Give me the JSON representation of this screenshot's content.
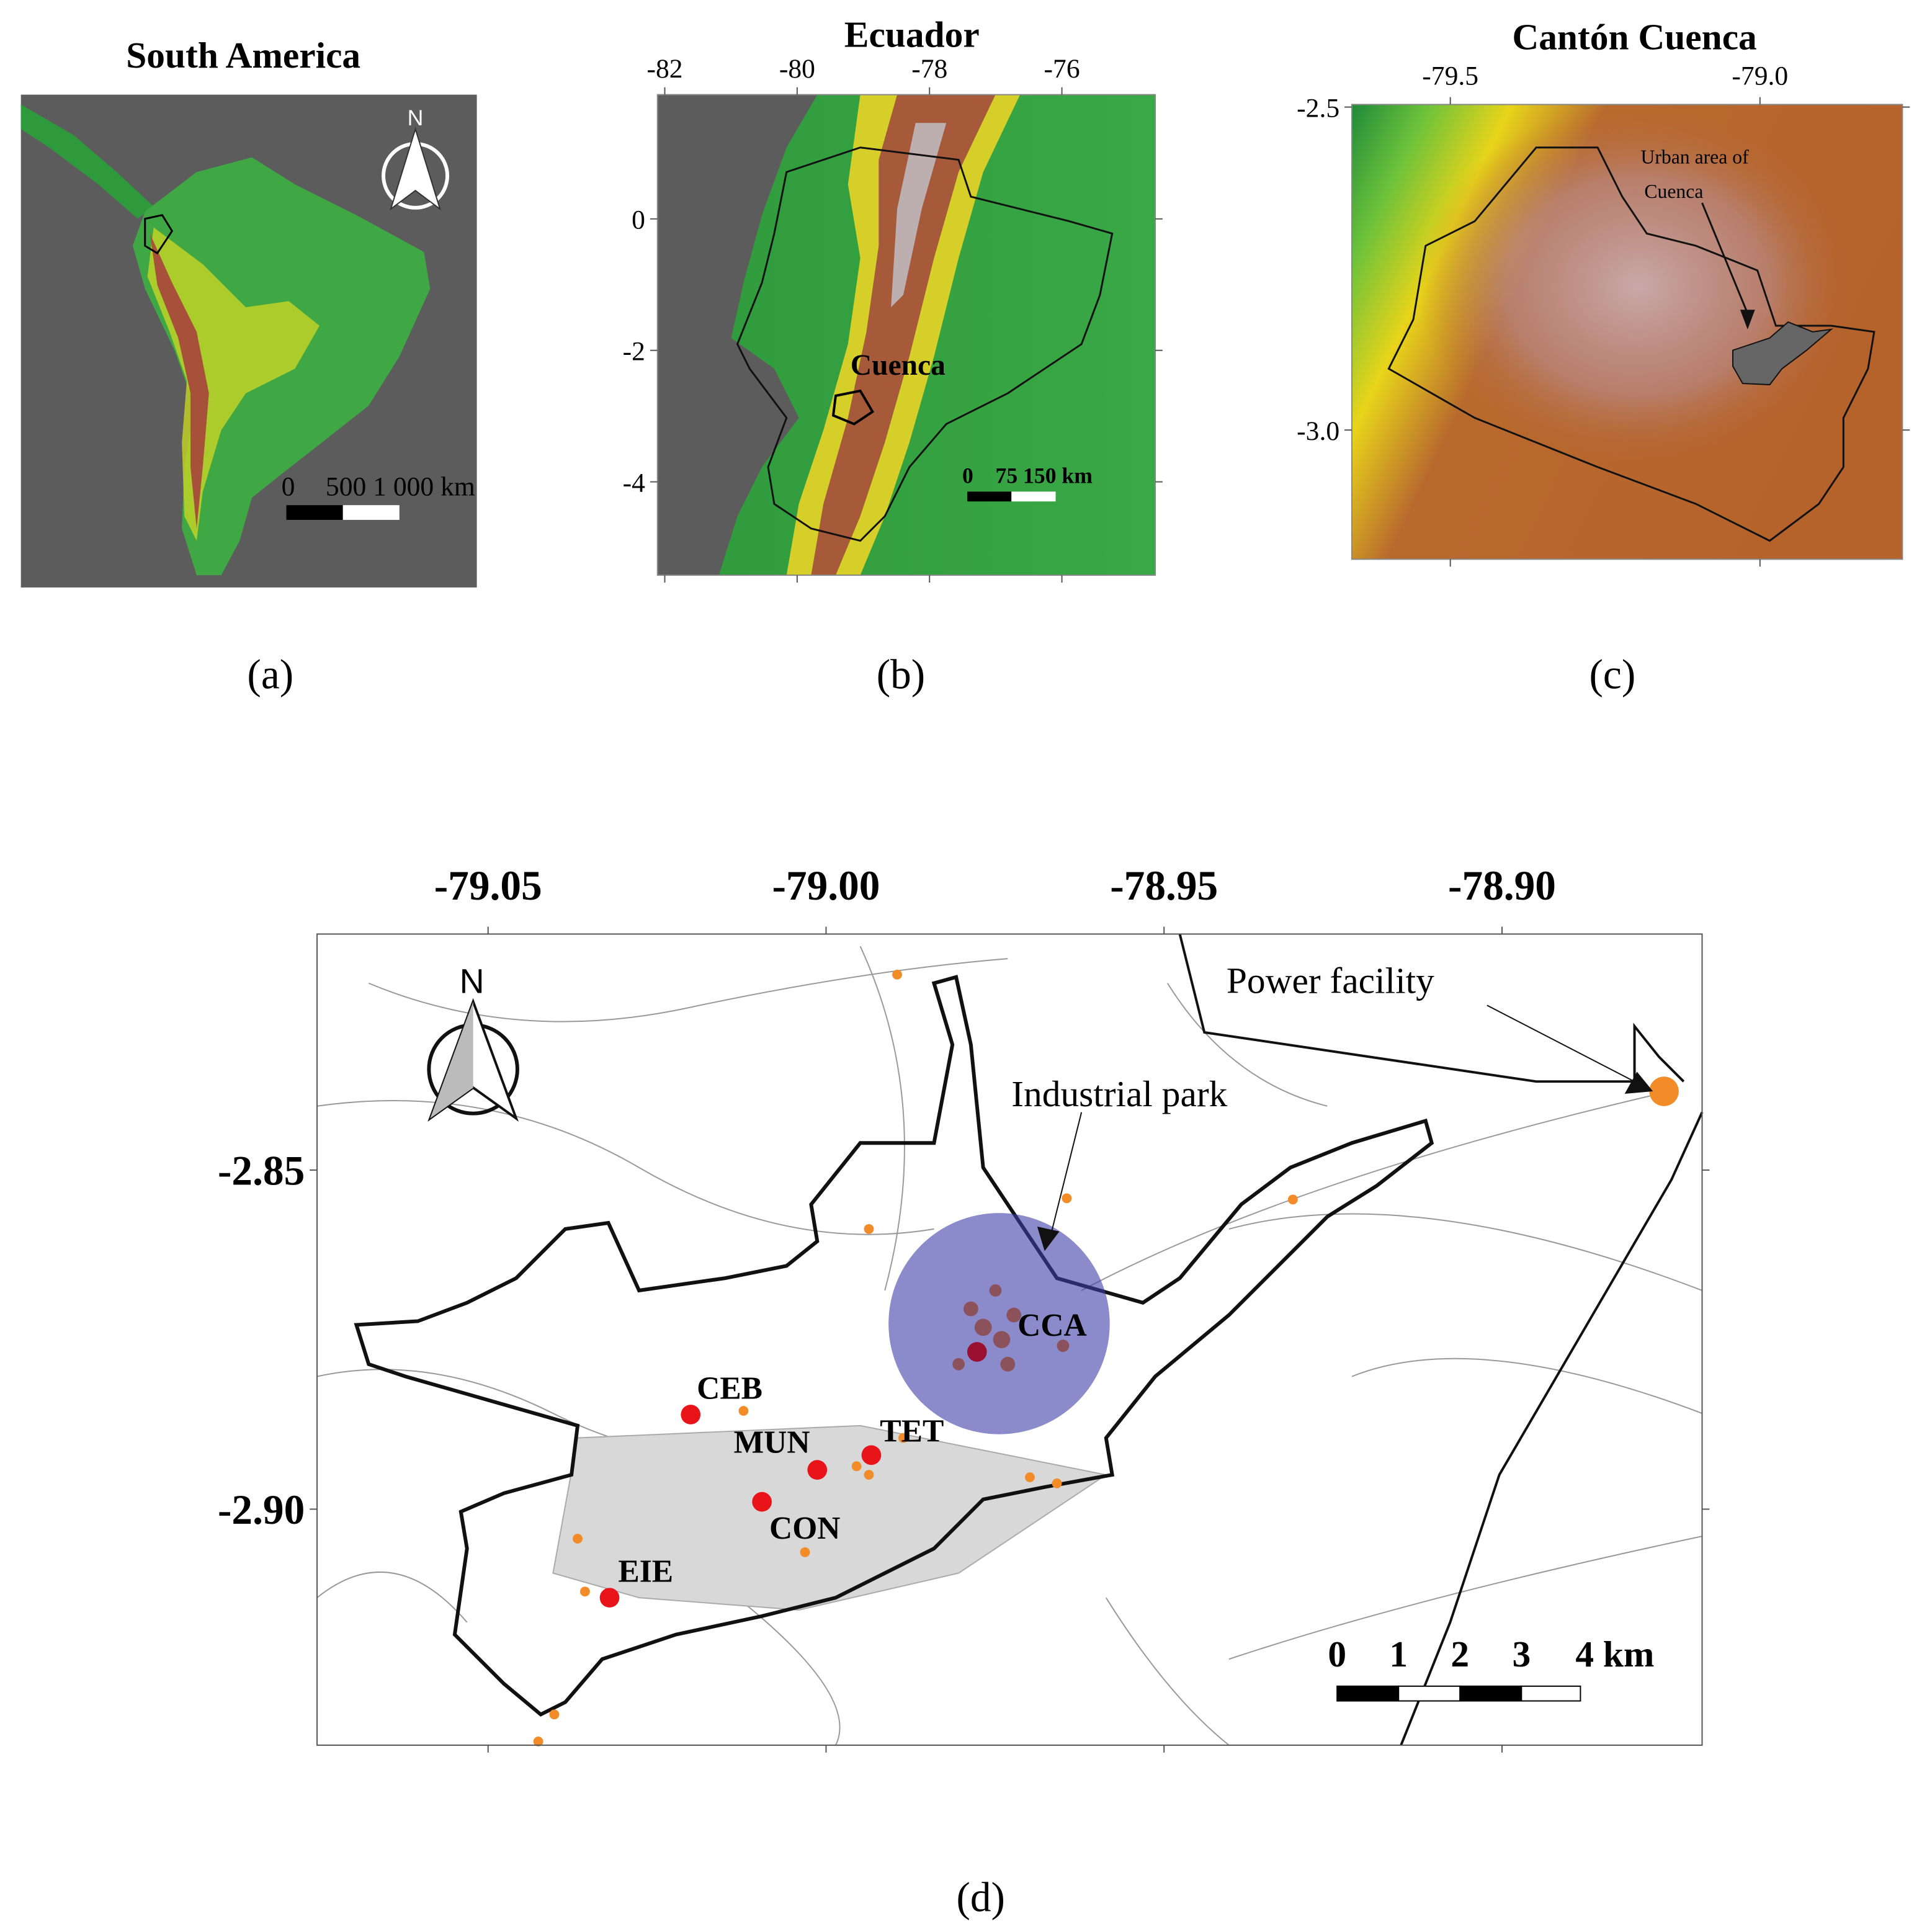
{
  "panels": {
    "a": {
      "title": "South America",
      "caption": "(a)",
      "north": "N",
      "scale_labels": [
        "0",
        "500 1 000 km"
      ]
    },
    "b": {
      "title": "Ecuador",
      "caption": "(b)",
      "xticks": [
        -82,
        -80,
        -78,
        -76
      ],
      "yticks": [
        0,
        -2,
        -4
      ],
      "xlim": [
        -82.11,
        -74.59
      ],
      "ylim": [
        -5.42,
        1.89
      ],
      "place_label": "Cuenca",
      "scale_labels": [
        "0",
        "75 150 km"
      ]
    },
    "c": {
      "title": "Cantón Cuenca",
      "caption": "(c)",
      "xticks": [
        -79.5,
        {
          "value": -79,
          "label": "-79.0"
        }
      ],
      "yticks": [
        -2.5,
        {
          "value": -3,
          "label": "-3.0"
        }
      ],
      "xlim": [
        -79.659,
        -78.77
      ],
      "ylim": [
        -3.2,
        -2.496
      ],
      "annotation": [
        "Urban area of",
        "Cuenca"
      ]
    },
    "d": {
      "caption": "(d)",
      "north": "N",
      "xticks": [
        -79.05,
        {
          "value": -79,
          "label": "-79.00"
        },
        -78.95,
        {
          "value": -78.9,
          "label": "-78.90"
        }
      ],
      "yticks": [
        -2.85,
        {
          "value": -2.9,
          "label": "-2.90"
        }
      ],
      "xlim": [
        -79.0753,
        -78.8704
      ],
      "ylim": [
        -2.9348,
        -2.8152
      ],
      "annotations": [
        "Industrial park",
        "Power facility"
      ],
      "stations": [
        "CEB",
        "MUN",
        "TET",
        "CON",
        "EIE",
        "CCA"
      ],
      "scale_labels": [
        "0",
        "1",
        "2",
        "3",
        "4 km"
      ]
    }
  }
}
